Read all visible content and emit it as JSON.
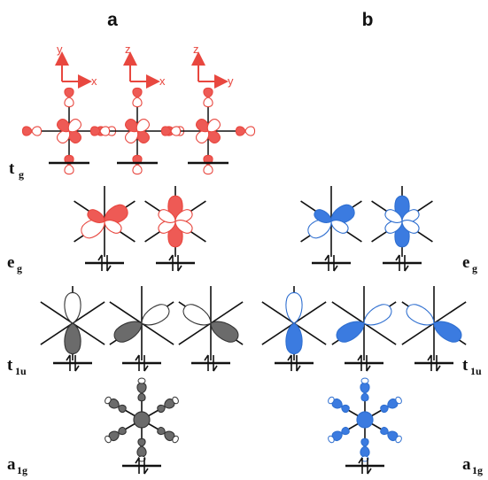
{
  "panels": [
    {
      "label": "a"
    },
    {
      "label": "b"
    }
  ],
  "levels": {
    "tg": {
      "symbol": "t",
      "subscript": "g"
    },
    "eg": {
      "symbol": "e",
      "subscript": "g"
    },
    "t1u": {
      "symbol": "t",
      "subscript": "1u"
    },
    "a1g": {
      "symbol": "a",
      "subscript": "1g"
    }
  },
  "axis_labels": [
    {
      "vertical": "y",
      "horizontal": "x"
    },
    {
      "vertical": "z",
      "horizontal": "x"
    },
    {
      "vertical": "z",
      "horizontal": "y"
    }
  ],
  "colors": {
    "red": "#e8473f",
    "red_fill": "#ee5a55",
    "blue": "#2f6fd0",
    "blue_fill": "#3b7be0",
    "gray": "#333333",
    "gray_fill": "#6b6b6b",
    "black": "#111111"
  }
}
